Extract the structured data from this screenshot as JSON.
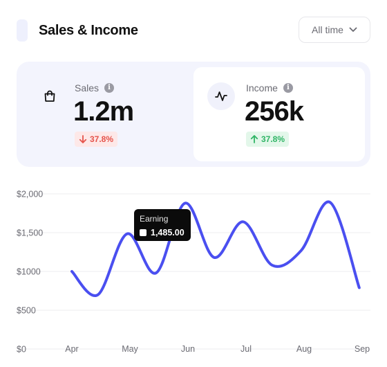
{
  "header": {
    "title": "Sales & Income",
    "period": "All time"
  },
  "cards": {
    "sales": {
      "label": "Sales",
      "value": "1.2m",
      "change": "37.8%",
      "trend": "down"
    },
    "income": {
      "label": "Income",
      "value": "256k",
      "change": "37.8%",
      "trend": "up"
    }
  },
  "colors": {
    "line": "#4a4ff0",
    "down": "#e5534b",
    "down_bg": "#fde8e8",
    "up": "#2fb565",
    "up_bg": "#e3f7ea",
    "panel": "#f3f4fd"
  },
  "icons": {
    "sales": "shopping-bag-icon",
    "income": "activity-icon",
    "info": "info-icon",
    "select": "chevron-down-icon"
  },
  "tooltip": {
    "title": "Earning",
    "value": "1,485.00"
  },
  "chart_data": {
    "type": "line",
    "x_ticks": [
      "Apr",
      "May",
      "Jun",
      "Jul",
      "Aug",
      "Sep"
    ],
    "y_ticks": [
      "$0",
      "$500",
      "$1000",
      "$1,500",
      "$2,000"
    ],
    "ylim": [
      0,
      2000
    ],
    "grid": true,
    "series": [
      {
        "color": "#4a4ff0",
        "x": [
          0.0,
          0.45,
          0.95,
          1.45,
          1.95,
          2.45,
          2.95,
          3.45,
          3.95,
          4.45,
          4.95
        ],
        "y": [
          1000,
          700,
          1485,
          980,
          1880,
          1180,
          1640,
          1080,
          1270,
          1890,
          790
        ]
      }
    ],
    "highlight": {
      "x": 0.95,
      "y": 1485
    }
  }
}
